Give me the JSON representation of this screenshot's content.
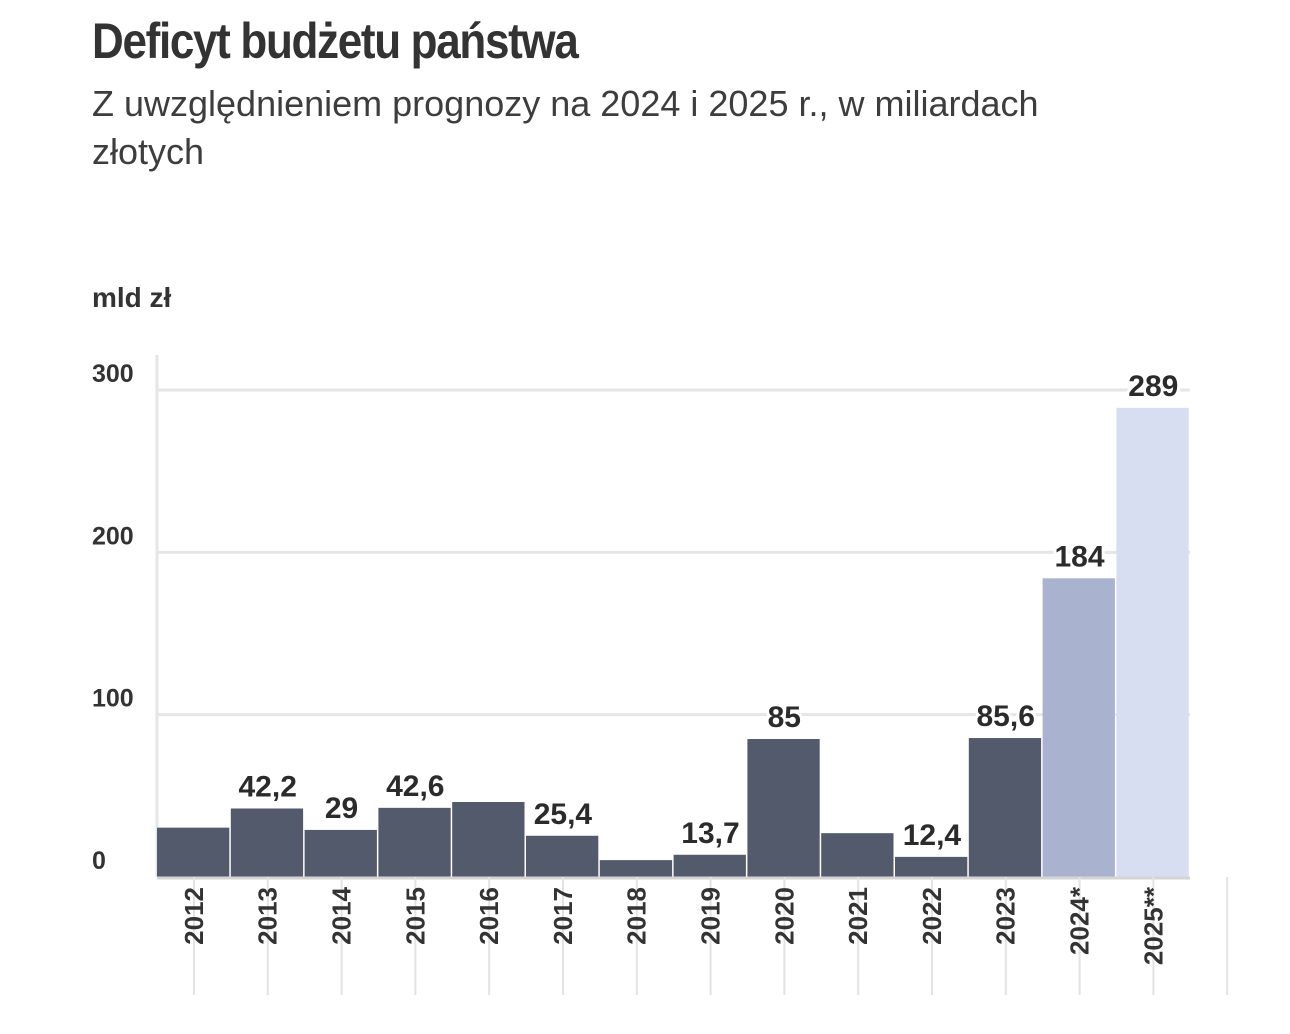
{
  "header": {
    "title": "Deficyt budżetu państwa",
    "subtitle": "Z uwzględnieniem prognozy na 2024 i 2025 r., w miliardach złotych"
  },
  "chart_data": {
    "type": "bar",
    "ylabel": "mld zł",
    "ylim": [
      0,
      300
    ],
    "yticks": [
      0,
      100,
      200,
      300
    ],
    "grid": true,
    "categories": [
      "2012",
      "2013",
      "2014",
      "2015",
      "2016",
      "2017",
      "2018",
      "2019",
      "2020",
      "2021",
      "2022",
      "2023",
      "2024*",
      "2025**"
    ],
    "values": [
      30.4,
      42.2,
      29,
      42.6,
      46.2,
      25.4,
      10.4,
      13.7,
      85,
      27,
      12.4,
      85.6,
      184,
      289
    ],
    "data_labels": [
      "",
      "42,2",
      "29",
      "42,6",
      "",
      "25,4",
      "",
      "13,7",
      "85",
      "",
      "12,4",
      "85,6",
      "184",
      "289"
    ],
    "colors": [
      "#535a6c",
      "#535a6c",
      "#535a6c",
      "#535a6c",
      "#535a6c",
      "#535a6c",
      "#535a6c",
      "#535a6c",
      "#535a6c",
      "#535a6c",
      "#535a6c",
      "#535a6c",
      "#a9b3cf",
      "#d8def1"
    ]
  }
}
